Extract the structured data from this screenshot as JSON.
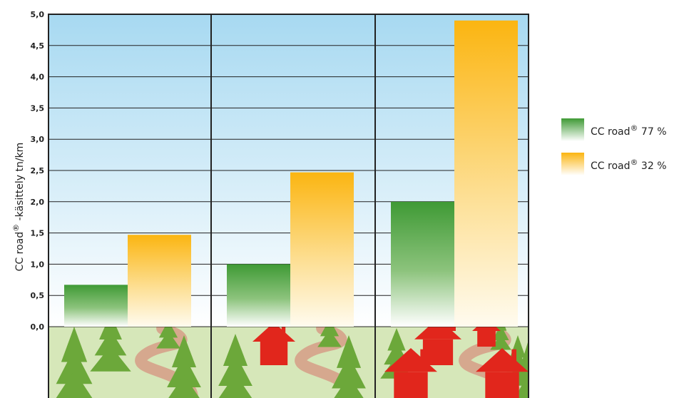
{
  "chart_data": {
    "type": "bar",
    "categories": [
      "",
      "",
      ""
    ],
    "series": [
      {
        "name": "CC road® 77 %",
        "values": [
          0.67,
          1.0,
          2.0
        ],
        "color": "#3f9a35"
      },
      {
        "name": "CC road® 32 %",
        "values": [
          1.47,
          2.47,
          4.9
        ],
        "color": "#fbb511"
      }
    ],
    "title": "",
    "xlabel": "",
    "ylabel": "CC road® -käsittely tn/km",
    "ylim": [
      0,
      5
    ],
    "yticks": [
      "0,0",
      "0,5",
      "1,0",
      "1,5",
      "2,0",
      "2,5",
      "3,0",
      "3,5",
      "4,0",
      "4,5",
      "5,0"
    ],
    "grid": true,
    "legend_position": "right",
    "legend_labels": [
      {
        "base": "CC road",
        "sup": "®",
        "rest": " 77 %"
      },
      {
        "base": "CC road",
        "sup": "®",
        "rest": " 32 %"
      }
    ],
    "ylabel_parts": {
      "base": "CC road",
      "sup": "®",
      "rest": " -käsittely tn/km"
    },
    "panel_illustrations": [
      "forest",
      "forest-with-house",
      "forest-with-houses"
    ]
  },
  "colors": {
    "sky_top": "#a7d9f1",
    "sky_bottom": "#ffffff",
    "ground": "#d6e7b9",
    "tree": "#6ca83a",
    "road": "#d6a88e",
    "house": "#e1261c"
  }
}
